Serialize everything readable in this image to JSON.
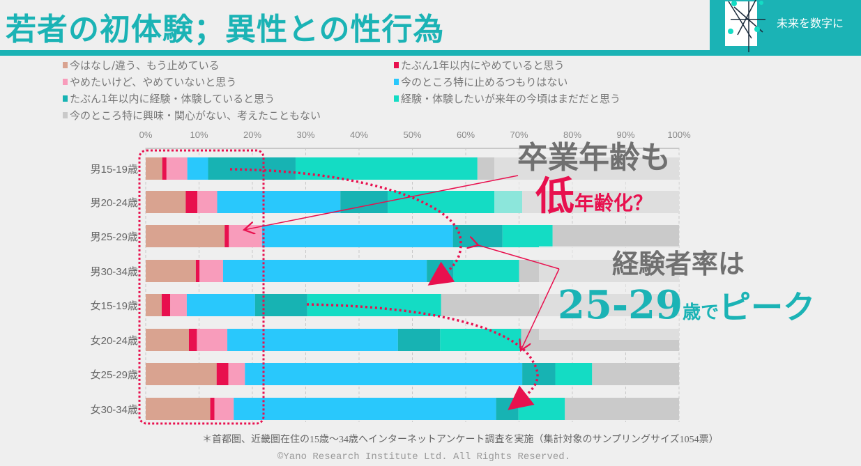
{
  "header": {
    "title": "若者の初体験；異性との性行為",
    "logo_text": "未来を数字に"
  },
  "colors": {
    "accent": "#1bb3b5",
    "highlight": "#e8104e"
  },
  "chart_data": {
    "type": "bar",
    "orientation": "horizontal",
    "stacked": true,
    "categories": [
      "男15-19歳",
      "男20-24歳",
      "男25-29歳",
      "男30-34歳",
      "女15-19歳",
      "女20-24歳",
      "女25-29歳",
      "女30-34歳"
    ],
    "xlim": [
      0,
      100
    ],
    "x_ticks": [
      "0%",
      "10%",
      "20%",
      "30%",
      "40%",
      "50%",
      "60%",
      "70%",
      "80%",
      "90%",
      "100%"
    ],
    "grid": true,
    "legend_position": "top",
    "series": [
      {
        "name": "今はなし/違う、もう止めている",
        "color": "#d9a390",
        "values": [
          3.1,
          7.5,
          14.8,
          9.4,
          3.0,
          8.1,
          13.3,
          12.1
        ]
      },
      {
        "name": "たぶん1年以内にやめていると思う",
        "color": "#e8104e",
        "values": [
          0.8,
          2.2,
          0.8,
          0.7,
          1.6,
          1.5,
          2.2,
          0.8
        ]
      },
      {
        "name": "やめたいけど、やめていないと思う",
        "color": "#f89cbb",
        "values": [
          3.9,
          3.7,
          6.2,
          4.4,
          3.1,
          5.7,
          3.1,
          3.6
        ]
      },
      {
        "name": "今のところ特に止めるつもりはない",
        "color": "#29c8fc",
        "values": [
          3.9,
          23.1,
          35.8,
          38.2,
          12.8,
          32.0,
          52.0,
          49.2
        ]
      },
      {
        "name": "たぶん1年以内に経験・体験していると思う",
        "color": "#17b3b3",
        "values": [
          16.4,
          8.9,
          9.3,
          5.0,
          9.8,
          7.9,
          6.2,
          4.2
        ]
      },
      {
        "name": "経験・体験したいが来年の今頃はまだだと思う",
        "color": "#14dcc4",
        "values": [
          34.1,
          25.2,
          9.4,
          12.3,
          25.1,
          15.2,
          6.9,
          8.7
        ]
      },
      {
        "name": "今のところ特に興味・関心がない、考えたこともない",
        "color": "#cacaca",
        "values": [
          37.8,
          29.4,
          23.7,
          30.0,
          44.6,
          29.6,
          16.3,
          21.4
        ]
      }
    ],
    "annotations": {
      "a1": "卒業年齢も",
      "a2_big": "低",
      "a2_rest": "年齢化？",
      "a3": "経験者率は",
      "a4_big": "25-29",
      "a4_mid": "歳で",
      "a4_rest": "ピーク"
    }
  },
  "footer": {
    "note": "＊首都圏、近畿圏在住の15歳～34歳へインターネットアンケート調査を実施（集計対象のサンプリングサイズ1054票）",
    "copyright": "©Yano Research Institute Ltd. All Rights Reserved."
  }
}
